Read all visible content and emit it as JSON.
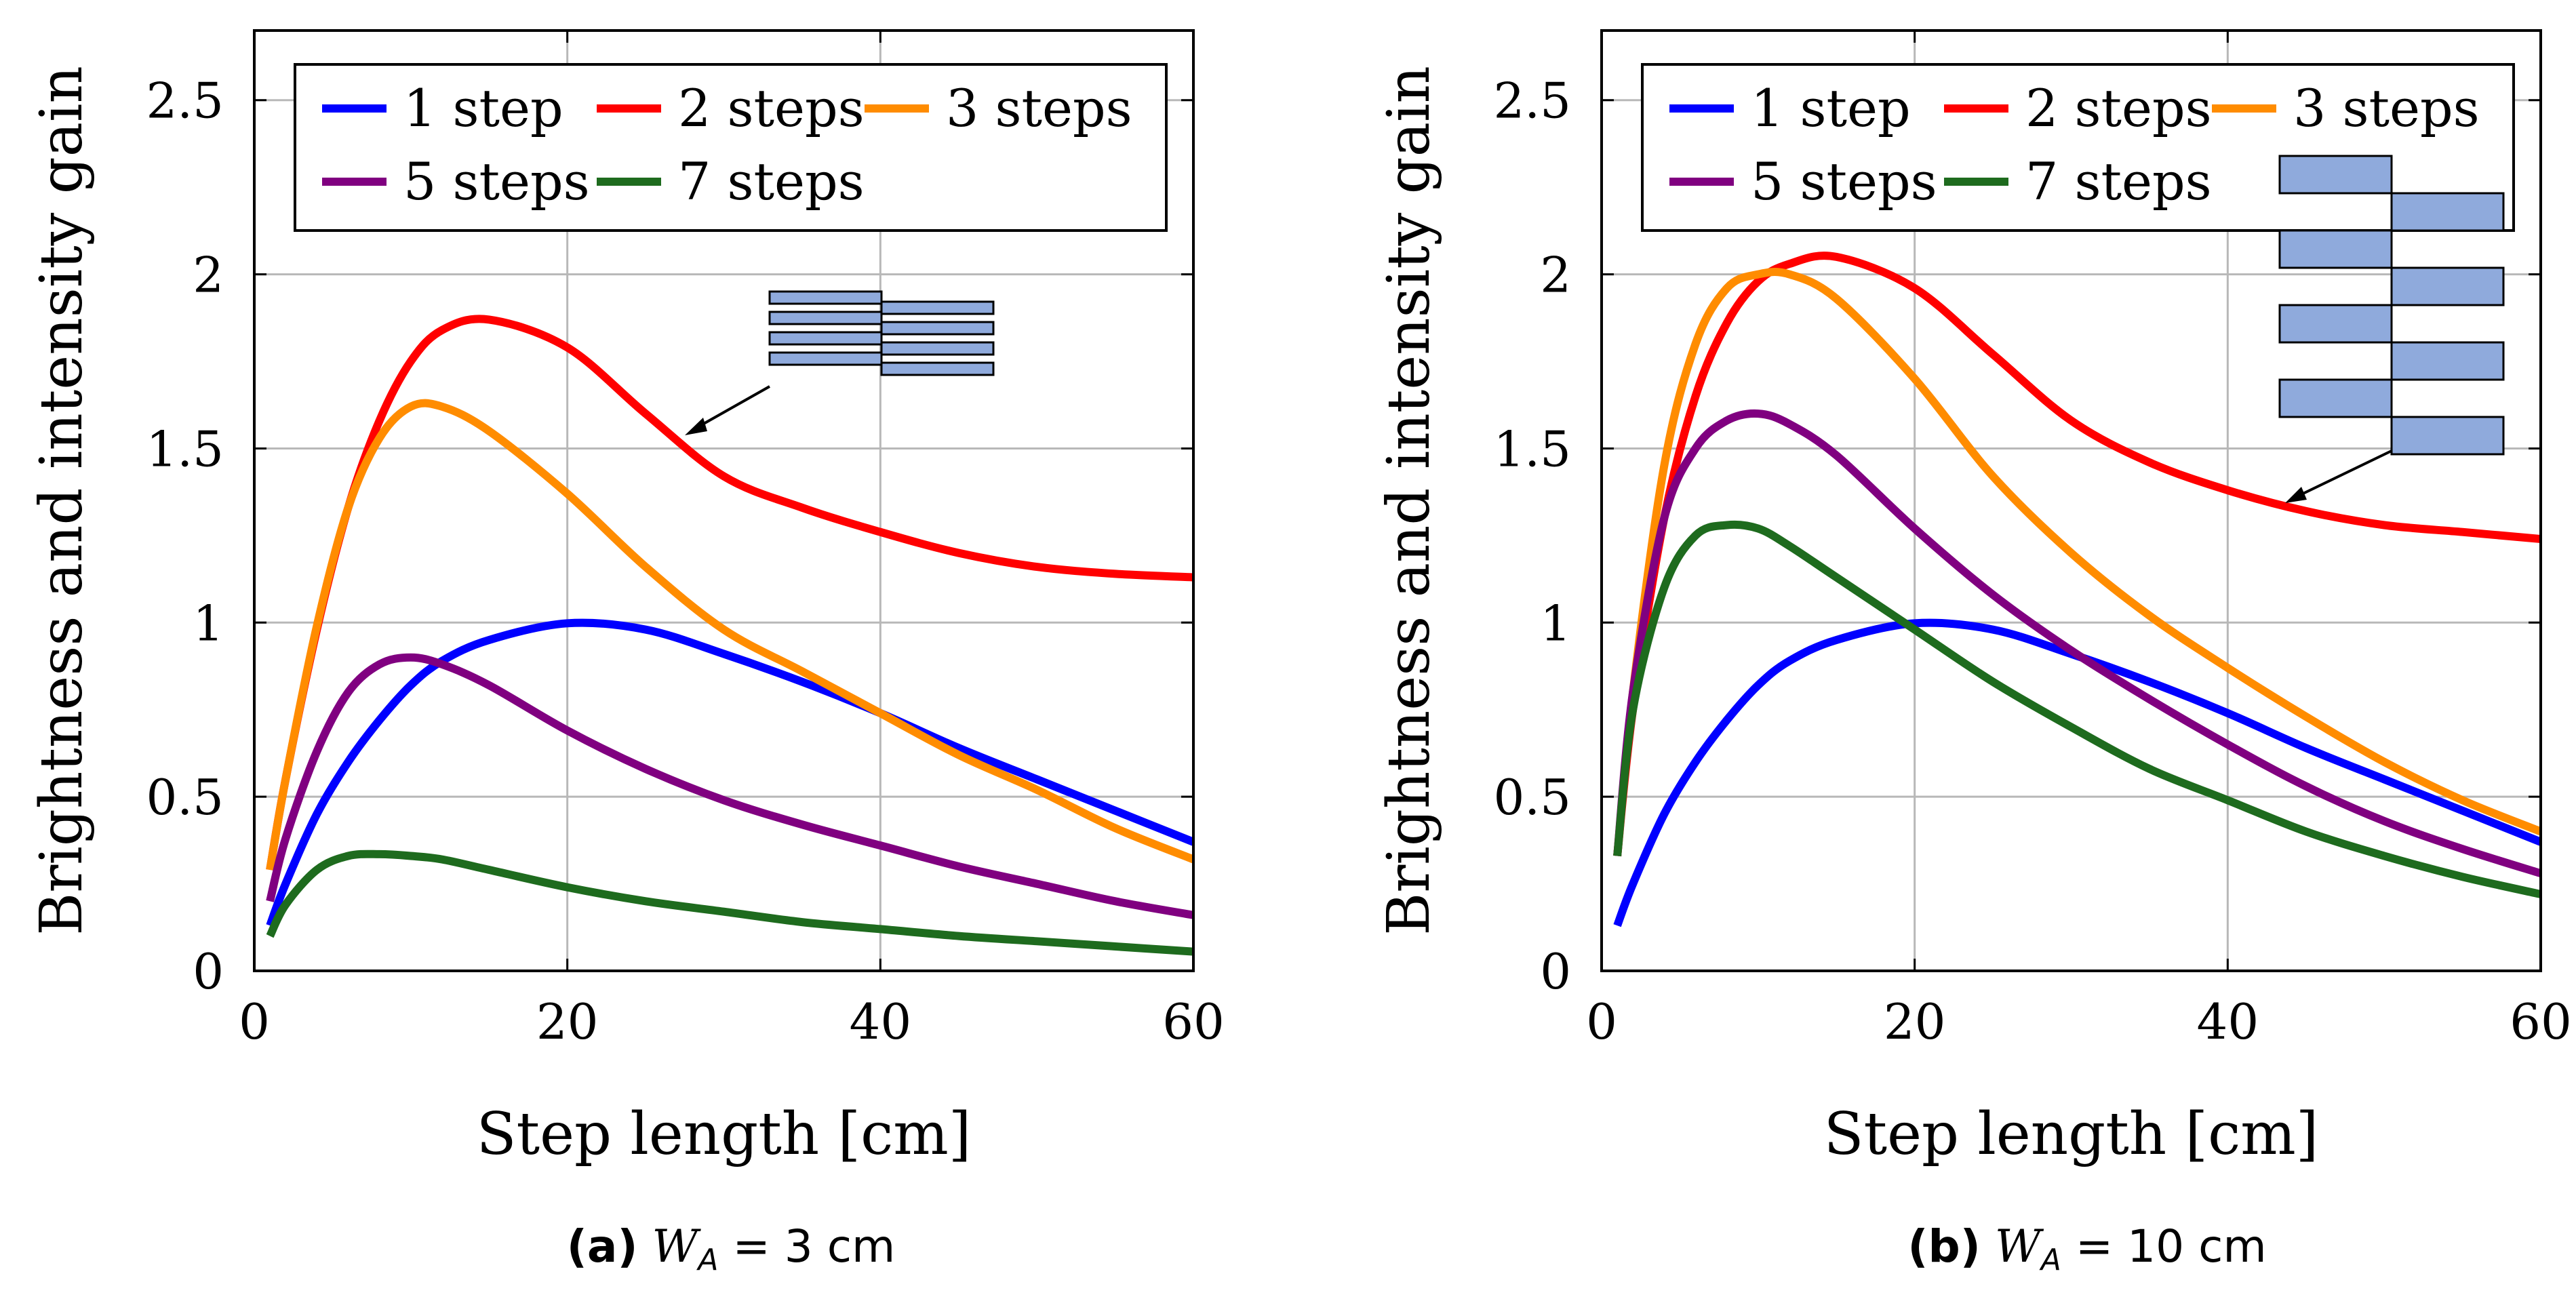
{
  "chart_data": [
    {
      "type": "line",
      "xlabel": "Step length [cm]",
      "ylabel": "Brightness and intensity gain",
      "xlim": [
        0,
        60
      ],
      "ylim": [
        0,
        2.7
      ],
      "xticks": [
        0,
        20,
        40,
        60
      ],
      "xtick_labels": [
        "0",
        "20",
        "40",
        "60"
      ],
      "yticks": [
        0,
        0.5,
        1,
        1.5,
        2,
        2.5
      ],
      "ytick_labels": [
        "0",
        "0.5",
        "1",
        "1.5",
        "2",
        "2.5"
      ],
      "grid": true,
      "legend_position": "top",
      "x": [
        1,
        2,
        4,
        6,
        8,
        10,
        12,
        15,
        20,
        25,
        30,
        35,
        40,
        45,
        50,
        55,
        60
      ],
      "series": [
        {
          "name": "1 step",
          "color": "#0000ff",
          "values": [
            0.13,
            0.25,
            0.45,
            0.6,
            0.72,
            0.82,
            0.89,
            0.95,
            0.998,
            0.98,
            0.91,
            0.83,
            0.74,
            0.64,
            0.55,
            0.46,
            0.37
          ]
        },
        {
          "name": "2 steps",
          "color": "#ff0000",
          "values": [
            0.29,
            0.55,
            0.98,
            1.33,
            1.58,
            1.75,
            1.84,
            1.87,
            1.79,
            1.6,
            1.42,
            1.33,
            1.26,
            1.2,
            1.16,
            1.14,
            1.13
          ]
        },
        {
          "name": "3 steps",
          "color": "#ff8c00",
          "values": [
            0.29,
            0.55,
            0.99,
            1.33,
            1.53,
            1.62,
            1.62,
            1.55,
            1.37,
            1.16,
            0.98,
            0.86,
            0.74,
            0.62,
            0.52,
            0.41,
            0.32
          ]
        },
        {
          "name": "5 steps",
          "color": "#800080",
          "values": [
            0.2,
            0.38,
            0.63,
            0.8,
            0.88,
            0.9,
            0.88,
            0.82,
            0.69,
            0.58,
            0.49,
            0.42,
            0.36,
            0.3,
            0.25,
            0.2,
            0.16
          ]
        },
        {
          "name": "7 steps",
          "color": "#1e6b1e",
          "values": [
            0.1,
            0.19,
            0.29,
            0.33,
            0.335,
            0.33,
            0.32,
            0.29,
            0.24,
            0.2,
            0.17,
            0.14,
            0.12,
            0.1,
            0.085,
            0.07,
            0.055
          ]
        }
      ]
    },
    {
      "type": "line",
      "xlabel": "Step length [cm]",
      "ylabel": "Brightness and intensity gain",
      "xlim": [
        0,
        60
      ],
      "ylim": [
        0,
        2.7
      ],
      "xticks": [
        0,
        20,
        40,
        60
      ],
      "xtick_labels": [
        "0",
        "20",
        "40",
        "60"
      ],
      "yticks": [
        0,
        0.5,
        1,
        1.5,
        2,
        2.5
      ],
      "ytick_labels": [
        "0",
        "0.5",
        "1",
        "1.5",
        "2",
        "2.5"
      ],
      "grid": true,
      "legend_position": "top",
      "x": [
        1,
        2,
        4,
        6,
        8,
        10,
        12,
        15,
        20,
        25,
        30,
        35,
        40,
        45,
        50,
        55,
        60
      ],
      "series": [
        {
          "name": "1 step",
          "color": "#0000ff",
          "values": [
            0.13,
            0.25,
            0.45,
            0.6,
            0.72,
            0.82,
            0.89,
            0.95,
            0.998,
            0.98,
            0.91,
            0.83,
            0.74,
            0.64,
            0.55,
            0.46,
            0.37
          ]
        },
        {
          "name": "2 steps",
          "color": "#ff0000",
          "values": [
            0.33,
            0.75,
            1.3,
            1.65,
            1.86,
            1.98,
            2.03,
            2.05,
            1.96,
            1.77,
            1.58,
            1.46,
            1.38,
            1.32,
            1.28,
            1.26,
            1.24
          ]
        },
        {
          "name": "3 steps",
          "color": "#ff8c00",
          "values": [
            0.33,
            0.8,
            1.45,
            1.8,
            1.96,
            2.0,
            2.0,
            1.93,
            1.7,
            1.42,
            1.2,
            1.02,
            0.87,
            0.73,
            0.6,
            0.49,
            0.4
          ]
        },
        {
          "name": "5 steps",
          "color": "#800080",
          "values": [
            0.33,
            0.8,
            1.3,
            1.5,
            1.58,
            1.6,
            1.57,
            1.48,
            1.27,
            1.08,
            0.92,
            0.78,
            0.65,
            0.53,
            0.43,
            0.35,
            0.28
          ]
        },
        {
          "name": "7 steps",
          "color": "#1e6b1e",
          "values": [
            0.33,
            0.75,
            1.1,
            1.25,
            1.28,
            1.27,
            1.22,
            1.13,
            0.98,
            0.83,
            0.7,
            0.58,
            0.49,
            0.4,
            0.33,
            0.27,
            0.22
          ]
        }
      ]
    }
  ],
  "captions": [
    {
      "label": "(a)",
      "var": "W",
      "sub": "A",
      "rest": " = 3 cm"
    },
    {
      "label": "(b)",
      "var": "W",
      "sub": "A",
      "rest": " = 10 cm"
    }
  ],
  "insets": [
    {
      "rect_fill": "#8faadc",
      "stroke": "#000000"
    },
    {
      "rect_fill": "#8faadc",
      "stroke": "#000000"
    }
  ]
}
